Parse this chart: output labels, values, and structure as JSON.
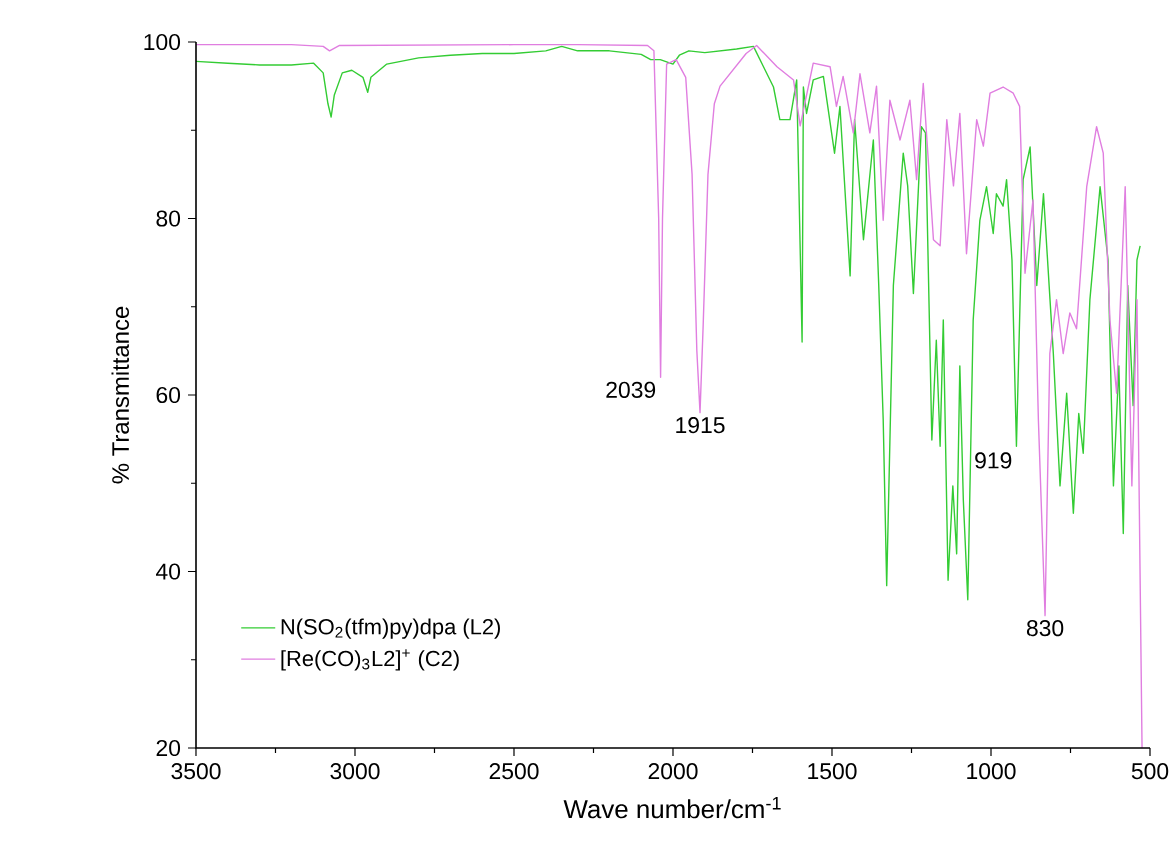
{
  "chart_data": {
    "type": "line",
    "xlabel": "Wave number/cm$^{-1}$",
    "ylabel": "% Transmittance",
    "xlim": [
      3500,
      500
    ],
    "ylim": [
      20,
      100
    ],
    "xticks": [
      3500,
      3000,
      2500,
      2000,
      1500,
      1000,
      500
    ],
    "yticks": [
      20,
      40,
      60,
      80,
      100
    ],
    "legend": "bottom left",
    "annotations": [
      {
        "text": "2039",
        "x": 2039,
        "y": 62
      },
      {
        "text": "1915",
        "x": 1915,
        "y": 58
      },
      {
        "text": "919",
        "x": 919,
        "y": 54
      },
      {
        "text": "830",
        "x": 830,
        "y": 35
      }
    ],
    "series": [
      {
        "name": "N(SO$_{2}$(tfm)py)dpa (L2)",
        "color": "#33cc33",
        "x": [
          3500,
          3400,
          3300,
          3200,
          3130,
          3100,
          3085,
          3075,
          3065,
          3040,
          3010,
          2975,
          2960,
          2950,
          2900,
          2800,
          2700,
          2600,
          2500,
          2400,
          2350,
          2300,
          2200,
          2100,
          2070,
          2040,
          2000,
          1980,
          1950,
          1900,
          1850,
          1800,
          1747,
          1684,
          1664,
          1632,
          1611,
          1594,
          1590,
          1580,
          1559,
          1527,
          1492,
          1475,
          1443,
          1429,
          1401,
          1370,
          1353,
          1339,
          1328,
          1307,
          1276,
          1262,
          1244,
          1219,
          1206,
          1186,
          1172,
          1160,
          1150,
          1135,
          1120,
          1108,
          1098,
          1087,
          1073,
          1056,
          1035,
          1014,
          993,
          983,
          962,
          951,
          934,
          920,
          899,
          877,
          856,
          835,
          804,
          783,
          762,
          741,
          724,
          710,
          689,
          657,
          632,
          615,
          598,
          584,
          570,
          553,
          541,
          531
        ],
        "values": [
          97.8,
          97.6,
          97.4,
          97.4,
          97.6,
          96.5,
          93,
          91.5,
          94,
          96.5,
          96.8,
          96,
          94.3,
          96,
          97.5,
          98.2,
          98.5,
          98.7,
          98.7,
          99,
          99.5,
          99,
          99,
          98.6,
          98,
          98,
          97.5,
          98.5,
          99,
          98.8,
          99,
          99.2,
          99.5,
          94.9,
          91.2,
          91.2,
          95.7,
          66,
          94.9,
          91.9,
          95.7,
          96.1,
          87.4,
          92.7,
          73.5,
          91.2,
          77.6,
          88.9,
          72.4,
          57.2,
          38.4,
          72.4,
          87.4,
          83.7,
          71.5,
          90.4,
          89.7,
          54.9,
          66.2,
          54.2,
          68.5,
          39,
          49.7,
          42,
          63.3,
          48.1,
          36.8,
          68.5,
          79.8,
          83.6,
          78.3,
          82.8,
          81.4,
          84.4,
          75.3,
          54.2,
          84.4,
          88.1,
          72.4,
          82.8,
          64.7,
          49.7,
          60.2,
          46.6,
          57.9,
          53.4,
          70.8,
          83.6,
          75.3,
          49.7,
          63.3,
          44.3,
          72.4,
          58.8,
          75.3,
          76.9
        ]
      },
      {
        "name": "[Re(CO)$_{3}$L2]$^{+}$ (C2)",
        "color": "#e07ee0",
        "x": [
          3500,
          3200,
          3100,
          3080,
          3050,
          2500,
          2300,
          2080,
          2060,
          2045,
          2039,
          2033,
          2020,
          1990,
          1960,
          1940,
          1925,
          1915,
          1905,
          1890,
          1870,
          1852,
          1770,
          1737,
          1673,
          1621,
          1600,
          1559,
          1506,
          1486,
          1465,
          1433,
          1412,
          1381,
          1360,
          1339,
          1318,
          1286,
          1255,
          1234,
          1213,
          1181,
          1160,
          1139,
          1118,
          1098,
          1077,
          1045,
          1024,
          1003,
          962,
          930,
          910,
          893,
          868,
          851,
          830,
          815,
          794,
          773,
          752,
          731,
          699,
          668,
          647,
          626,
          605,
          578,
          557,
          541,
          525
        ],
        "values": [
          99.7,
          99.7,
          99.5,
          99,
          99.6,
          99.7,
          99.7,
          99.6,
          99,
          80,
          62,
          80,
          97.5,
          98,
          96,
          85,
          65,
          58,
          68,
          85,
          93,
          95,
          98.7,
          99.6,
          97.2,
          95.7,
          90.5,
          97.6,
          97.2,
          92.7,
          96.1,
          89.7,
          96.4,
          89.7,
          95,
          79.8,
          93.4,
          88.9,
          93.4,
          84.4,
          95.3,
          77.6,
          76.9,
          91.2,
          83.7,
          91.9,
          76,
          91.2,
          88.2,
          94.2,
          94.9,
          94.2,
          92.7,
          73.8,
          82.1,
          57.2,
          35,
          64.7,
          70.8,
          64.7,
          69.3,
          67.5,
          83.6,
          90.4,
          87.4,
          68.5,
          60.2,
          83.6,
          49.7,
          70.8,
          20
        ]
      }
    ]
  }
}
